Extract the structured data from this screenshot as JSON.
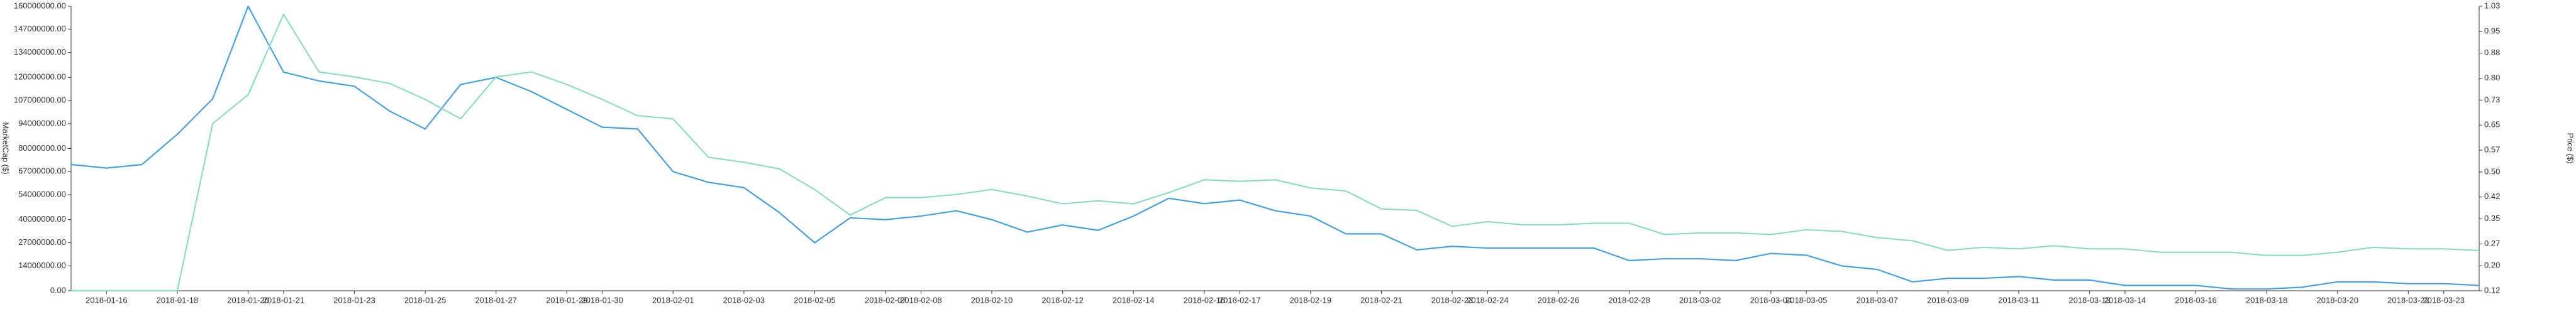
{
  "chart_data": {
    "type": "line",
    "y_label": "MarketCap ($)",
    "y2_label": "Price ($)",
    "categories": [
      null,
      "2018-01-16",
      null,
      "2018-01-18",
      null,
      "2018-01-20",
      "2018-01-21",
      null,
      "2018-01-23",
      null,
      "2018-01-25",
      null,
      "2018-01-27",
      null,
      "2018-01-29",
      "2018-01-30",
      null,
      "2018-02-01",
      null,
      "2018-02-03",
      null,
      "2018-02-05",
      null,
      "2018-02-07",
      "2018-02-08",
      null,
      "2018-02-10",
      null,
      "2018-02-12",
      null,
      "2018-02-14",
      null,
      "2018-02-16",
      "2018-02-17",
      null,
      "2018-02-19",
      null,
      "2018-02-21",
      null,
      "2018-02-23",
      "2018-02-24",
      null,
      "2018-02-26",
      null,
      "2018-02-28",
      null,
      "2018-03-02",
      null,
      "2018-03-04",
      "2018-03-05",
      null,
      "2018-03-07",
      null,
      "2018-03-09",
      null,
      "2018-03-11",
      null,
      "2018-03-13",
      "2018-03-14",
      null,
      "2018-03-16",
      null,
      "2018-03-18",
      null,
      "2018-03-20",
      null,
      "2018-03-22",
      "2018-03-23",
      null
    ],
    "series": [
      {
        "color": "#4a9fd8",
        "axis": "y",
        "values": [
          71000000,
          69000000,
          71000000,
          88000000,
          108000000,
          160000000,
          123000000,
          118000000,
          115000000,
          101000000,
          91000000,
          116000000,
          120000000,
          112000000,
          102000000,
          92000000,
          91000000,
          67000000,
          61000000,
          58000000,
          44000000,
          27000000,
          41000000,
          40000000,
          42000000,
          45000000,
          40000000,
          33000000,
          37000000,
          34000000,
          42000000,
          52000000,
          49000000,
          51000000,
          45000000,
          42000000,
          32000000,
          32000000,
          23000000,
          25000000,
          24000000,
          24000000,
          24000000,
          24000000,
          17000000,
          18000000,
          18000000,
          17000000,
          21000000,
          20000000,
          14000000,
          12000000,
          5000000,
          7000000,
          7000000,
          8000000,
          6000000,
          6000000,
          3000000,
          3000000,
          3000000,
          1000000,
          1000000,
          2000000,
          5000000,
          5000000,
          4000000,
          4000000,
          3000000
        ]
      },
      {
        "color": "#8fd9c9",
        "axis": "y2",
        "values": [
          0.12,
          0.12,
          0.12,
          0.12,
          0.655,
          0.747,
          1.004,
          0.82,
          0.804,
          0.783,
          0.732,
          0.67,
          0.804,
          0.82,
          0.78,
          0.732,
          0.68,
          0.67,
          0.547,
          0.531,
          0.51,
          0.444,
          0.362,
          0.418,
          0.418,
          0.428,
          0.444,
          0.423,
          0.398,
          0.408,
          0.398,
          0.434,
          0.475,
          0.47,
          0.475,
          0.449,
          0.439,
          0.382,
          0.377,
          0.326,
          0.341,
          0.331,
          0.331,
          0.336,
          0.336,
          0.3,
          0.305,
          0.305,
          0.3,
          0.315,
          0.31,
          0.29,
          0.28,
          0.249,
          0.259,
          0.254,
          0.264,
          0.254,
          0.254,
          0.243,
          0.243,
          0.243,
          0.233,
          0.233,
          0.243,
          0.259,
          0.254,
          0.254,
          0.249
        ]
      }
    ],
    "ylim": [
      0,
      160000000
    ],
    "yticks": [
      {
        "value": 0,
        "label": "0.00"
      },
      {
        "value": 14000000,
        "label": "14000000.00"
      },
      {
        "value": 27000000,
        "label": "27000000.00"
      },
      {
        "value": 40000000,
        "label": "40000000.00"
      },
      {
        "value": 54000000,
        "label": "54000000.00"
      },
      {
        "value": 67000000,
        "label": "67000000.00"
      },
      {
        "value": 80000000,
        "label": "80000000.00"
      },
      {
        "value": 94000000,
        "label": "94000000.00"
      },
      {
        "value": 107000000,
        "label": "107000000.00"
      },
      {
        "value": 120000000,
        "label": "120000000.00"
      },
      {
        "value": 134000000,
        "label": "134000000.00"
      },
      {
        "value": 147000000,
        "label": "147000000.00"
      },
      {
        "value": 160000000,
        "label": "160000000.00"
      }
    ],
    "y2lim": [
      0.12,
      1.03
    ],
    "y2ticks": [
      0.12,
      {
        "value": 0.2,
        "label": "0.20"
      },
      0.27,
      0.35,
      0.42,
      {
        "value": 0.5,
        "label": "0.50"
      },
      0.57,
      0.65,
      0.73,
      {
        "value": 0.8,
        "label": "0.80"
      },
      0.88,
      0.95,
      1.03
    ],
    "grid": false
  }
}
